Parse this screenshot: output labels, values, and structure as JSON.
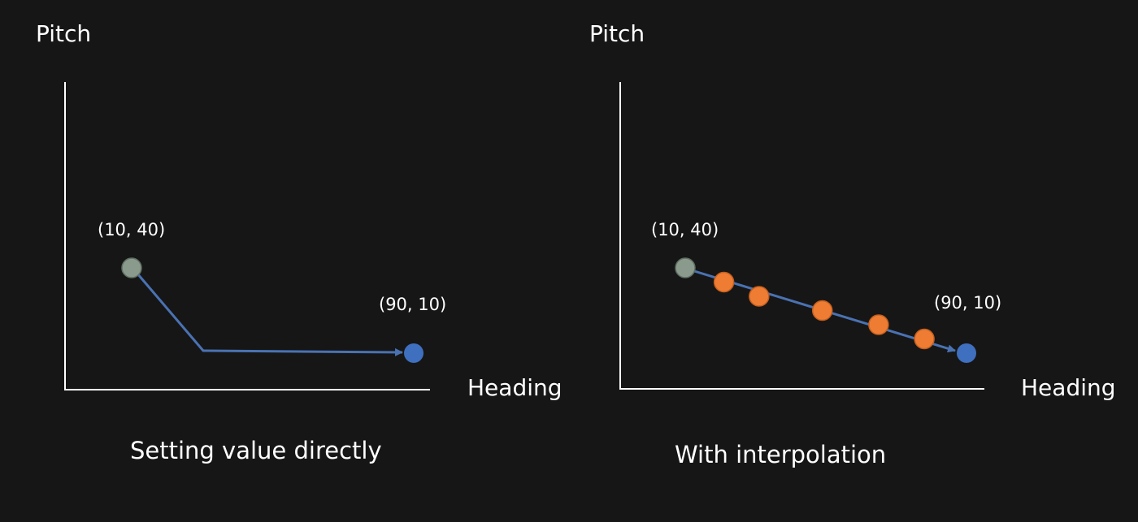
{
  "colors": {
    "background": "#161616",
    "axis": "#ffffff",
    "path": "#4a72b2",
    "start_point": "#8a9a8c",
    "end_point": "#3f6fbf",
    "intermediate_point": "#ee7d33"
  },
  "diagrams": [
    {
      "caption": "Setting value directly",
      "y_axis_label": "Pitch",
      "x_axis_label": "Heading",
      "start": {
        "label": "(10, 40)",
        "heading": 10,
        "pitch": 40
      },
      "end": {
        "label": "(90, 10)",
        "heading": 90,
        "pitch": 10
      },
      "intermediate_points": []
    },
    {
      "caption": "With interpolation",
      "y_axis_label": "Pitch",
      "x_axis_label": "Heading",
      "start": {
        "label": "(10, 40)",
        "heading": 10,
        "pitch": 40
      },
      "end": {
        "label": "(90, 10)",
        "heading": 90,
        "pitch": 10
      },
      "intermediate_points": [
        {
          "heading": 21,
          "pitch": 35
        },
        {
          "heading": 31,
          "pitch": 30
        },
        {
          "heading": 49,
          "pitch": 25
        },
        {
          "heading": 65,
          "pitch": 20
        },
        {
          "heading": 78,
          "pitch": 15
        }
      ]
    }
  ]
}
